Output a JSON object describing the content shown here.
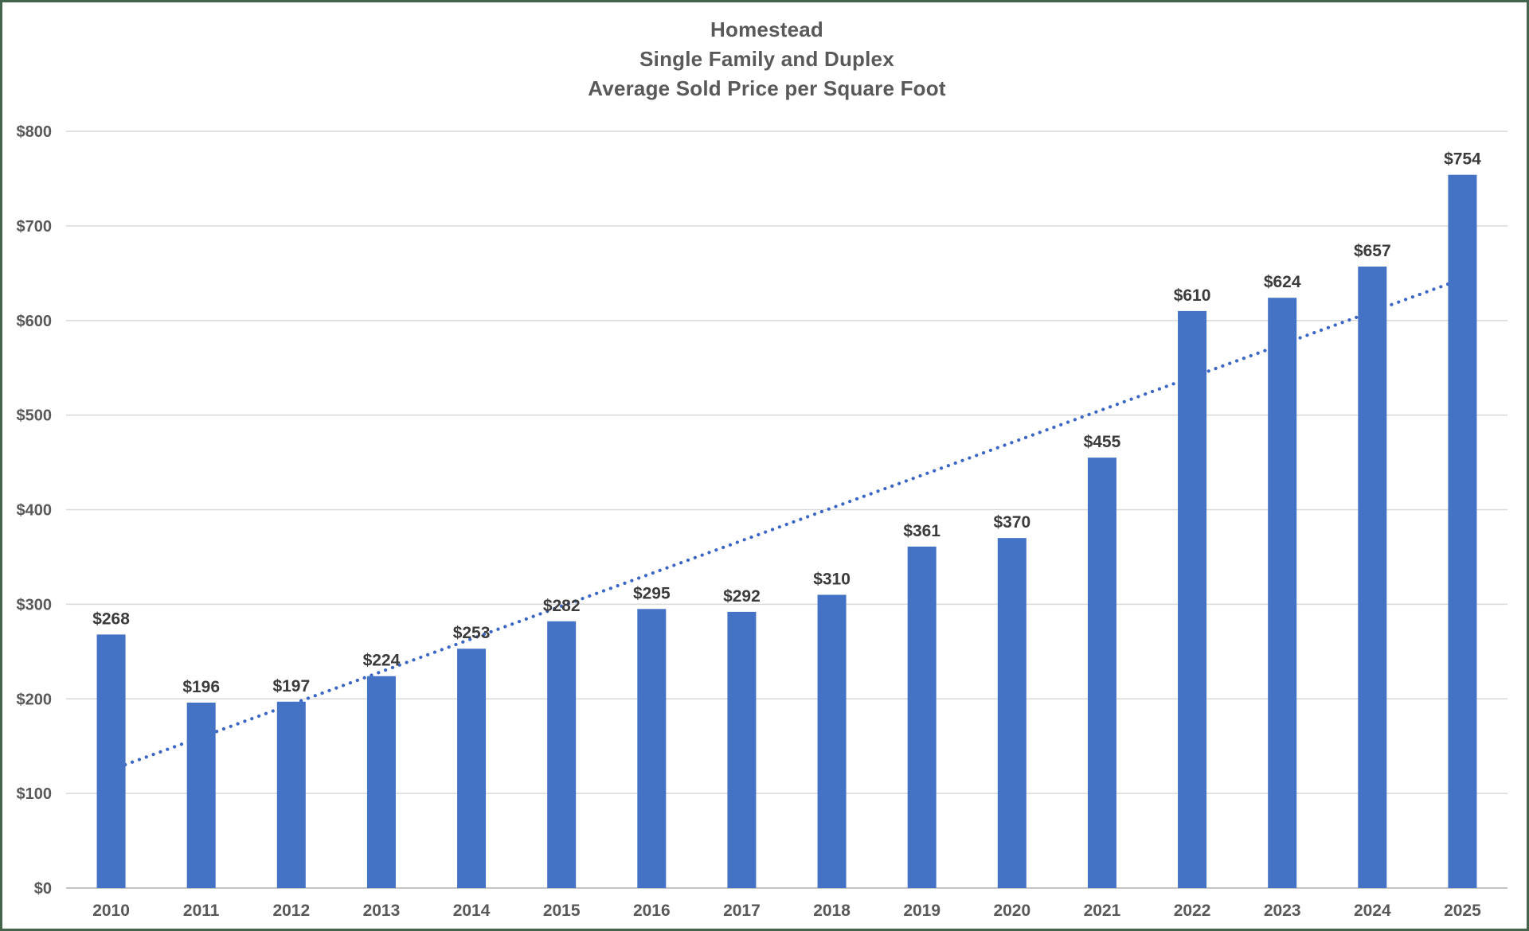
{
  "chart_data": {
    "type": "bar",
    "title_lines": [
      "Homestead",
      "Single Family and Duplex",
      "Average Sold Price per Square Foot"
    ],
    "categories": [
      "2010",
      "2011",
      "2012",
      "2013",
      "2014",
      "2015",
      "2016",
      "2017",
      "2018",
      "2019",
      "2020",
      "2021",
      "2022",
      "2023",
      "2024",
      "2025"
    ],
    "values": [
      268,
      196,
      197,
      224,
      253,
      282,
      295,
      292,
      310,
      361,
      370,
      455,
      610,
      624,
      657,
      754
    ],
    "data_labels": [
      "$268",
      "$196",
      "$197",
      "$224",
      "$253",
      "$282",
      "$295",
      "$292",
      "$310",
      "$361",
      "$370",
      "$455",
      "$610",
      "$624",
      "$657",
      "$754"
    ],
    "y_ticks": [
      {
        "value": 0,
        "label": "$0"
      },
      {
        "value": 100,
        "label": "$100"
      },
      {
        "value": 200,
        "label": "$200"
      },
      {
        "value": 300,
        "label": "$300"
      },
      {
        "value": 400,
        "label": "$400"
      },
      {
        "value": 500,
        "label": "$500"
      },
      {
        "value": 600,
        "label": "$600"
      },
      {
        "value": 700,
        "label": "$700"
      },
      {
        "value": 800,
        "label": "$800"
      }
    ],
    "ylim": [
      0,
      800
    ],
    "grid": "horizontal-only",
    "legend": "none",
    "trendline": {
      "style": "dotted-linear",
      "start_value": 125,
      "end_value": 644
    },
    "colors": {
      "bar": "#4472C4",
      "trendline": "#3b66c4",
      "gridline": "#d9d9d9",
      "axis_line": "#c3c3c3",
      "tick_label": "#595959",
      "data_label": "#3b3b3b",
      "title": "#595959",
      "frame_border": "#44654c",
      "background": "#ffffff"
    }
  }
}
